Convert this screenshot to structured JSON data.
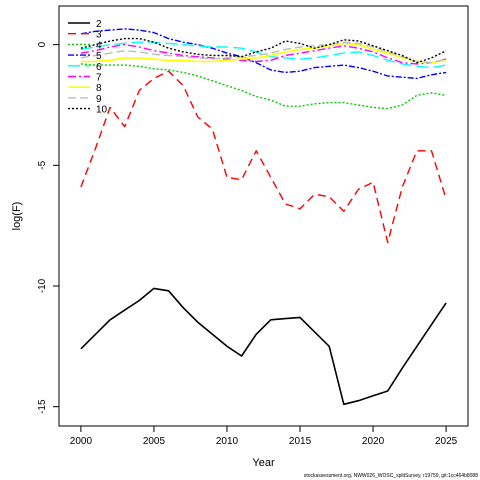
{
  "chart_data": {
    "type": "line",
    "title": "",
    "xlabel": "Year",
    "ylabel": "log(F)",
    "xlim": [
      1998.5,
      2026.5
    ],
    "ylim": [
      -15.8,
      1.6
    ],
    "xticks": [
      2000,
      2005,
      2010,
      2015,
      2020,
      2025
    ],
    "yticks": [
      0,
      -5,
      -10,
      -15
    ],
    "ytick_labels": [
      "0",
      "-5",
      "-10",
      "-15"
    ],
    "grid": false,
    "legend_position": "top-left",
    "x": [
      2000,
      2001,
      2002,
      2003,
      2004,
      2005,
      2006,
      2007,
      2008,
      2009,
      2010,
      2011,
      2012,
      2013,
      2014,
      2015,
      2016,
      2017,
      2018,
      2019,
      2020,
      2021,
      2022,
      2023,
      2024,
      2025
    ],
    "series": [
      {
        "name": "2",
        "color": "#000000",
        "dash": "solid",
        "width": 1.6,
        "values": [
          -12.6,
          -12.0,
          -11.4,
          -11.0,
          -10.6,
          -10.1,
          -10.2,
          -10.9,
          -11.5,
          -12.0,
          -12.5,
          -12.9,
          -12.0,
          -11.4,
          -11.35,
          -11.3,
          -11.9,
          -12.5,
          -14.9,
          -14.75,
          -14.55,
          -14.35,
          -13.4,
          -12.5,
          -11.6,
          -10.7
        ]
      },
      {
        "name": "3",
        "color": "#ff0000",
        "dash": "8,5",
        "width": 1.4,
        "values": [
          -5.9,
          -4.3,
          -2.6,
          -3.4,
          -1.9,
          -1.4,
          -1.1,
          -1.7,
          -3.0,
          -3.5,
          -5.5,
          -5.6,
          -4.4,
          -5.5,
          -6.6,
          -6.8,
          -6.2,
          -6.3,
          -6.9,
          -6.0,
          -5.7,
          -8.2,
          -5.9,
          -4.4,
          -4.4,
          -6.4
        ]
      },
      {
        "name": "4",
        "color": "#00cc00",
        "dash": "2,2",
        "width": 1.4,
        "values": [
          -0.8,
          -0.85,
          -0.85,
          -0.85,
          -0.9,
          -1.0,
          -1.05,
          -1.15,
          -1.3,
          -1.5,
          -1.7,
          -1.9,
          -2.15,
          -2.3,
          -2.55,
          -2.55,
          -2.45,
          -2.4,
          -2.4,
          -2.5,
          -2.6,
          -2.65,
          -2.5,
          -2.1,
          -2.0,
          -2.1
        ]
      },
      {
        "name": "5",
        "color": "#0000ff",
        "dash": "6,2,2,2",
        "width": 1.4,
        "values": [
          0.45,
          0.55,
          0.6,
          0.65,
          0.6,
          0.5,
          0.25,
          0.1,
          0.0,
          -0.15,
          -0.35,
          -0.5,
          -0.75,
          -1.05,
          -1.15,
          -1.1,
          -0.95,
          -0.9,
          -0.85,
          -0.95,
          -1.1,
          -1.3,
          -1.35,
          -1.4,
          -1.25,
          -1.15
        ]
      },
      {
        "name": "6",
        "color": "#00ffff",
        "dash": "12,5",
        "width": 1.4,
        "values": [
          -0.2,
          -0.1,
          0.0,
          0.05,
          0.1,
          0.1,
          0.05,
          0.0,
          -0.05,
          -0.1,
          -0.1,
          -0.15,
          -0.3,
          -0.5,
          -0.55,
          -0.6,
          -0.55,
          -0.45,
          -0.35,
          -0.3,
          -0.45,
          -0.65,
          -0.8,
          -0.9,
          -0.95,
          -0.85
        ]
      },
      {
        "name": "7",
        "color": "#ff00ff",
        "dash": "8,3,2,3",
        "width": 1.4,
        "values": [
          -0.35,
          -0.25,
          -0.1,
          0.0,
          -0.1,
          -0.25,
          -0.35,
          -0.45,
          -0.5,
          -0.55,
          -0.6,
          -0.65,
          -0.7,
          -0.65,
          -0.45,
          -0.35,
          -0.25,
          -0.15,
          -0.05,
          -0.15,
          -0.3,
          -0.55,
          -0.75,
          -0.8,
          -0.75,
          -0.6
        ]
      },
      {
        "name": "8",
        "color": "#ffff00",
        "dash": "solid",
        "width": 1.6,
        "values": [
          -0.7,
          -0.7,
          -0.65,
          -0.55,
          -0.55,
          -0.6,
          -0.65,
          -0.65,
          -0.7,
          -0.7,
          -0.65,
          -0.6,
          -0.55,
          -0.45,
          -0.3,
          -0.2,
          -0.15,
          -0.05,
          0.05,
          0.0,
          -0.2,
          -0.35,
          -0.55,
          -0.7,
          -0.75,
          -0.65
        ]
      },
      {
        "name": "9",
        "color": "#bbbbbb",
        "dash": "8,4",
        "width": 1.4,
        "values": [
          -0.55,
          -0.45,
          -0.35,
          -0.25,
          -0.3,
          -0.4,
          -0.45,
          -0.5,
          -0.55,
          -0.6,
          -0.55,
          -0.5,
          -0.45,
          -0.35,
          -0.2,
          -0.1,
          -0.05,
          0.0,
          0.1,
          0.05,
          -0.1,
          -0.3,
          -0.5,
          -0.7,
          -0.75,
          -0.6
        ]
      },
      {
        "name": "10",
        "color": "#000000",
        "dash": "2,2",
        "width": 1.4,
        "values": [
          -0.15,
          0.0,
          0.15,
          0.25,
          0.25,
          0.1,
          -0.15,
          -0.3,
          -0.4,
          -0.45,
          -0.45,
          -0.5,
          -0.3,
          -0.15,
          0.15,
          0.05,
          -0.15,
          0.0,
          0.2,
          0.15,
          -0.05,
          -0.25,
          -0.45,
          -0.75,
          -0.55,
          -0.25
        ]
      }
    ]
  },
  "footnote": "stockassessment.org, NWW026_WOSC_splitSurvey, r19759, git:1cc464b8088"
}
